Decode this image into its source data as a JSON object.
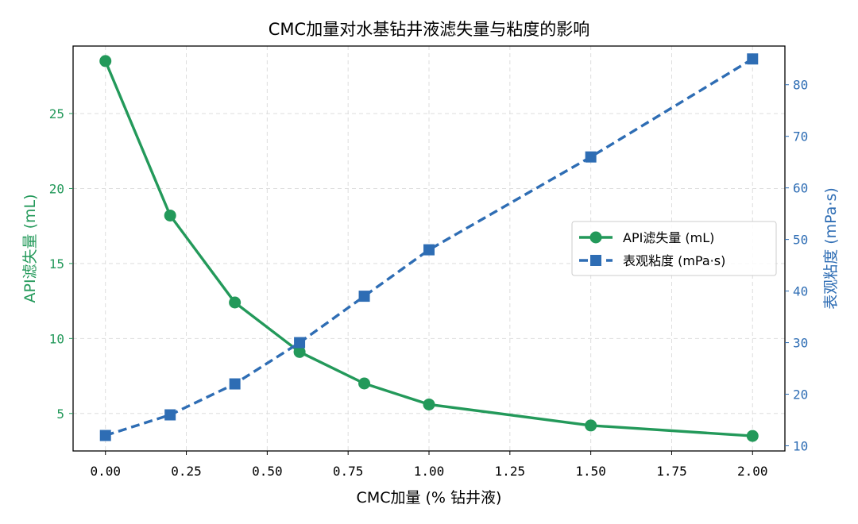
{
  "chart_data": {
    "type": "line",
    "title": "CMC加量对水基钻井液滤失量与粘度的影响",
    "xlabel": "CMC加量 (% 钻井液)",
    "ylabel_left": "API滤失量 (mL)",
    "ylabel_right": "表观粘度 (mPa·s)",
    "x": [
      0.0,
      0.2,
      0.4,
      0.6,
      0.8,
      1.0,
      1.5,
      2.0
    ],
    "xlim": [
      -0.1,
      2.1
    ],
    "ylim_left": [
      2.5,
      29.5
    ],
    "ylim_right": [
      9.0,
      87.5
    ],
    "xticks": [
      0.0,
      0.25,
      0.5,
      0.75,
      1.0,
      1.25,
      1.5,
      1.75,
      2.0
    ],
    "xtick_labels": [
      "0.00",
      "0.25",
      "0.50",
      "0.75",
      "1.00",
      "1.25",
      "1.50",
      "1.75",
      "2.00"
    ],
    "yticks_left": [
      5,
      10,
      15,
      20,
      25
    ],
    "ytick_labels_left": [
      "5",
      "10",
      "15",
      "20",
      "25"
    ],
    "yticks_right": [
      10,
      20,
      30,
      40,
      50,
      60,
      70,
      80
    ],
    "ytick_labels_right": [
      "10",
      "20",
      "30",
      "40",
      "50",
      "60",
      "70",
      "80"
    ],
    "grid": true,
    "legend_position": "center-right",
    "series": [
      {
        "name": "API滤失量 (mL)",
        "axis": "left",
        "values": [
          28.5,
          18.2,
          12.4,
          9.1,
          7.0,
          5.6,
          4.2,
          3.5
        ],
        "color": "#23995a",
        "marker": "circle",
        "line_style": "solid"
      },
      {
        "name": "表观粘度 (mPa·s)",
        "axis": "right",
        "values": [
          12,
          16,
          22,
          30,
          39,
          48,
          66,
          85
        ],
        "color": "#2e6db4",
        "marker": "square",
        "line_style": "dashed"
      }
    ]
  }
}
